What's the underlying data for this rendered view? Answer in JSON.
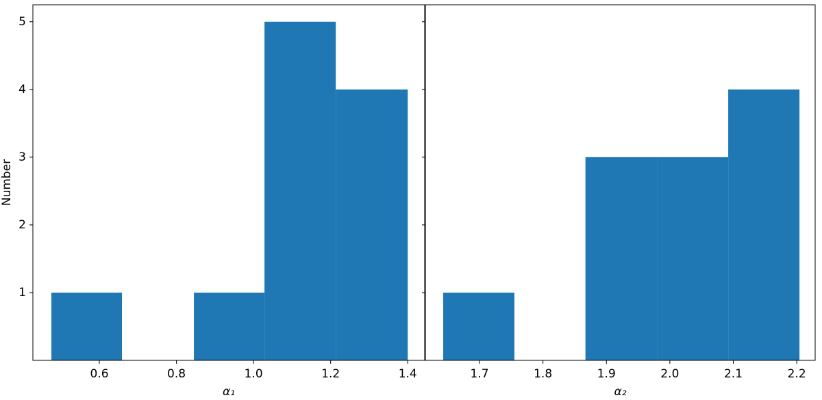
{
  "chart_data": [
    {
      "type": "histogram",
      "xlabel": "α₁",
      "ylabel": "Number",
      "color": "#1f77b4",
      "bins": [
        0.4756,
        0.6587,
        0.8453,
        1.0284,
        1.2133,
        1.4
      ],
      "counts": [
        1,
        0,
        1,
        5,
        4
      ],
      "xlim": [
        0.4276,
        1.444
      ],
      "xticks": [
        {
          "value": 0.6,
          "label": "0.6"
        },
        {
          "value": 0.8,
          "label": "0.8"
        },
        {
          "value": 1.0,
          "label": "1.0"
        },
        {
          "value": 1.2,
          "label": "1.2"
        },
        {
          "value": 1.4,
          "label": "1.4"
        }
      ],
      "ylim": [
        0,
        5.25
      ],
      "yticks": [
        1,
        2,
        3,
        4,
        5
      ]
    },
    {
      "type": "histogram",
      "xlabel": "α₂",
      "color": "#1f77b4",
      "bins": [
        1.6428,
        1.755,
        1.867,
        1.9797,
        2.092,
        2.2043
      ],
      "counts": [
        1,
        0,
        3,
        3,
        4
      ],
      "xlim": [
        1.6147,
        2.229
      ],
      "xticks": [
        {
          "value": 1.7,
          "label": "1.7"
        },
        {
          "value": 1.8,
          "label": "1.8"
        },
        {
          "value": 1.9,
          "label": "1.9"
        },
        {
          "value": 2.0,
          "label": "2.0"
        },
        {
          "value": 2.1,
          "label": "2.1"
        },
        {
          "value": 2.2,
          "label": "2.2"
        }
      ],
      "ylim": [
        0,
        5.25
      ],
      "yticks": [
        1,
        2,
        3,
        4,
        5
      ]
    }
  ]
}
